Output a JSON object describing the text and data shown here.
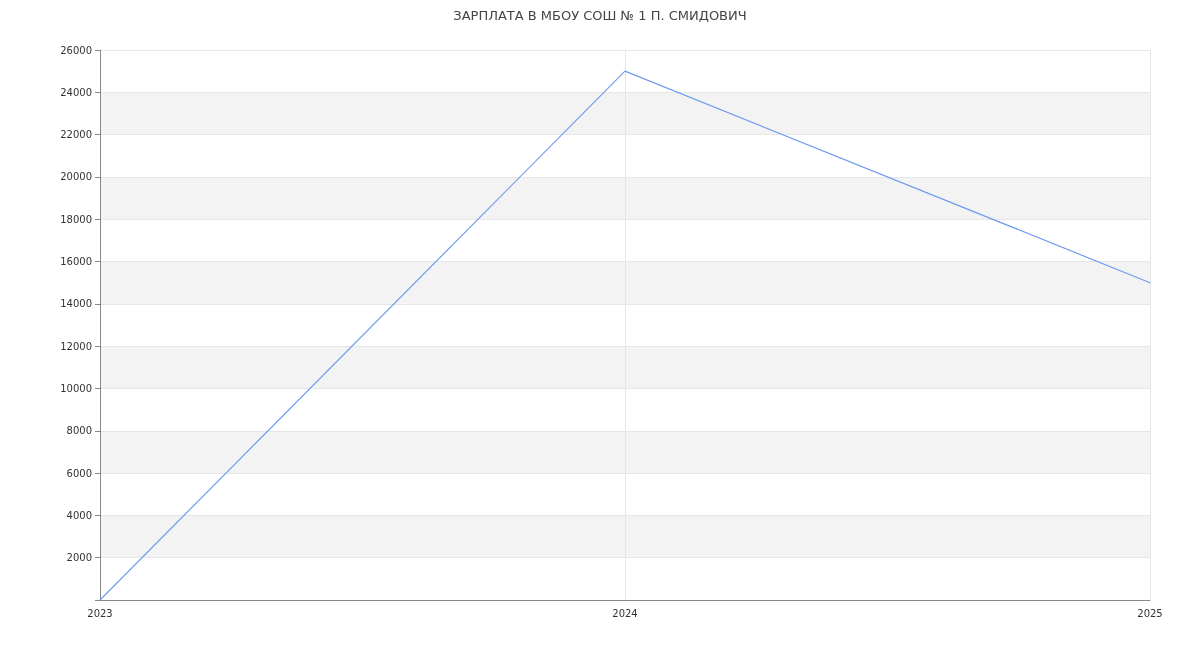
{
  "chart_data": {
    "type": "line",
    "title": "ЗАРПЛАТА В МБОУ СОШ № 1 П. СМИДОВИЧ",
    "categories": [
      "2023",
      "2024",
      "2025"
    ],
    "series": [
      {
        "color": "#6f9cf0",
        "values": [
          0,
          25000,
          15000
        ]
      }
    ],
    "ylim": [
      0,
      26000
    ],
    "yticks": [
      {
        "value": 0,
        "label": null
      },
      2000,
      4000,
      6000,
      8000,
      10000,
      12000,
      14000,
      16000,
      18000,
      20000,
      22000,
      24000,
      26000
    ],
    "grid": true,
    "marker": "none",
    "line_style": "solid"
  }
}
